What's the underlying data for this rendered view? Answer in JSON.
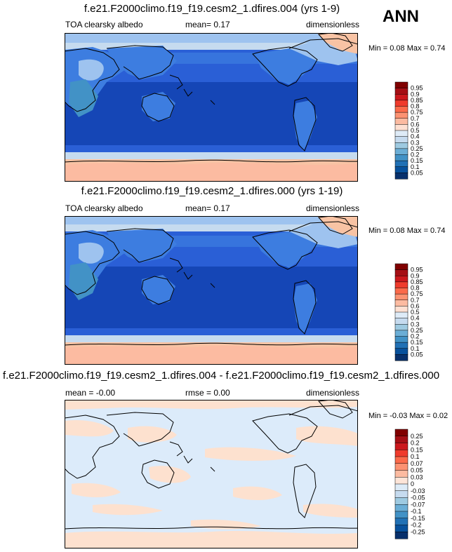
{
  "season_label": "ANN",
  "panels": [
    {
      "title": "f.e21.F2000climo.f19_f19.cesm2_1.dfires.004 (yrs 1-9)",
      "left_label": "TOA clearsky albedo",
      "center_label": "mean=  0.17",
      "right_label": "dimensionless",
      "minmax": "Min =  0.08 Max =  0.74",
      "colorbar_labels": [
        "0.95",
        "0.9",
        "0.85",
        "0.8",
        "0.75",
        "0.7",
        "0.6",
        "0.5",
        "0.4",
        "0.3",
        "0.25",
        "0.2",
        "0.15",
        "0.1",
        "0.05"
      ]
    },
    {
      "title": "f.e21.F2000climo.f19_f19.cesm2_1.dfires.000 (yrs 1-19)",
      "left_label": "TOA clearsky albedo",
      "center_label": "mean=  0.17",
      "right_label": "dimensionless",
      "minmax": "Min =  0.08 Max =  0.74",
      "colorbar_labels": [
        "0.95",
        "0.9",
        "0.85",
        "0.8",
        "0.75",
        "0.7",
        "0.6",
        "0.5",
        "0.4",
        "0.3",
        "0.25",
        "0.2",
        "0.15",
        "0.1",
        "0.05"
      ]
    },
    {
      "title": "f.e21.F2000climo.f19_f19.cesm2_1.dfires.004 - f.e21.F2000climo.f19_f19.cesm2_1.dfires.000",
      "left_label": "mean =  -0.00",
      "center_label": "rmse =  0.00",
      "right_label": "dimensionless",
      "minmax": "Min =  -0.03 Max =  0.02",
      "colorbar_labels": [
        "0.25",
        "0.2",
        "0.15",
        "0.1",
        "0.07",
        "0.05",
        "0.03",
        "0",
        "-0.03",
        "-0.05",
        "-0.07",
        "-0.1",
        "-0.15",
        "-0.2",
        "-0.25"
      ]
    }
  ],
  "colors": {
    "field_palette": [
      "#800000",
      "#a50f15",
      "#cb181d",
      "#ef3b2c",
      "#fb6a4a",
      "#fc9272",
      "#fcbba1",
      "#fee0d2",
      "#deebf7",
      "#c6dbef",
      "#9ecae1",
      "#6baed6",
      "#4292c6",
      "#2171b5",
      "#08519c",
      "#08306b"
    ],
    "diff_palette": [
      "#800000",
      "#a50f15",
      "#cb181d",
      "#ef3b2c",
      "#fb6a4a",
      "#fc9272",
      "#fcbba1",
      "#fde5d8",
      "#ddebf7",
      "#c6dbef",
      "#9ecae1",
      "#6baed6",
      "#4292c6",
      "#2171b5",
      "#08519c",
      "#08306b"
    ],
    "ocean_deep": "#1546b6",
    "ocean_mid": "#2a5fd6",
    "land_mid": "#3d7de0",
    "land_light": "#9ec3ef",
    "ice_light": "#d7e6fa",
    "ice_pink": "#f8c3a4",
    "diff_blue": "#dcebfa",
    "diff_peach": "#fde1cf"
  },
  "chart_data": [
    {
      "type": "heatmap",
      "title": "f.e21.F2000climo.f19_f19.cesm2_1.dfires.004 (yrs 1-9)",
      "variable": "TOA clearsky albedo",
      "units": "dimensionless",
      "projection": "global cylindrical equidistant, Pacific-centered",
      "mean": 0.17,
      "min": 0.08,
      "max": 0.74,
      "contour_levels": [
        0.05,
        0.1,
        0.15,
        0.2,
        0.25,
        0.3,
        0.4,
        0.5,
        0.6,
        0.7,
        0.75,
        0.8,
        0.85,
        0.9,
        0.95
      ]
    },
    {
      "type": "heatmap",
      "title": "f.e21.F2000climo.f19_f19.cesm2_1.dfires.000 (yrs 1-19)",
      "variable": "TOA clearsky albedo",
      "units": "dimensionless",
      "projection": "global cylindrical equidistant, Pacific-centered",
      "mean": 0.17,
      "min": 0.08,
      "max": 0.74,
      "contour_levels": [
        0.05,
        0.1,
        0.15,
        0.2,
        0.25,
        0.3,
        0.4,
        0.5,
        0.6,
        0.7,
        0.75,
        0.8,
        0.85,
        0.9,
        0.95
      ]
    },
    {
      "type": "heatmap",
      "title": "f.e21.F2000climo.f19_f19.cesm2_1.dfires.004 - f.e21.F2000climo.f19_f19.cesm2_1.dfires.000",
      "units": "dimensionless",
      "projection": "global cylindrical equidistant, Pacific-centered",
      "mean": -0.0,
      "rmse": 0.0,
      "min": -0.03,
      "max": 0.02,
      "contour_levels": [
        -0.25,
        -0.2,
        -0.15,
        -0.1,
        -0.07,
        -0.05,
        -0.03,
        0,
        0.03,
        0.05,
        0.07,
        0.1,
        0.15,
        0.2,
        0.25
      ]
    }
  ]
}
